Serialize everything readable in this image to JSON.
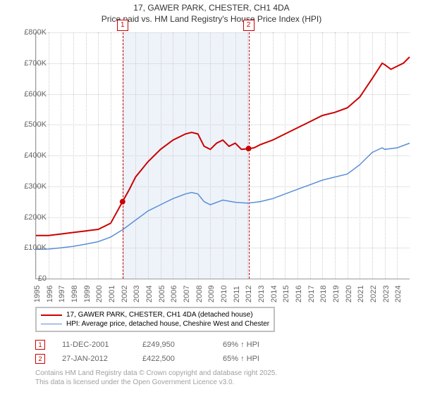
{
  "title": {
    "line1": "17, GAWER PARK, CHESTER, CH1 4DA",
    "line2": "Price paid vs. HM Land Registry's House Price Index (HPI)"
  },
  "chart": {
    "type": "line",
    "background_color": "#ffffff",
    "grid_color": "#cccccc",
    "axis_color": "#999999",
    "x_range": [
      1995,
      2025
    ],
    "y_range": [
      0,
      800000
    ],
    "y_ticks": [
      0,
      100000,
      200000,
      300000,
      400000,
      500000,
      600000,
      700000,
      800000
    ],
    "y_tick_labels": [
      "£0",
      "£100K",
      "£200K",
      "£300K",
      "£400K",
      "£500K",
      "£600K",
      "£700K",
      "£800K"
    ],
    "x_ticks": [
      1995,
      1996,
      1997,
      1998,
      1999,
      2000,
      2001,
      2002,
      2003,
      2004,
      2005,
      2006,
      2007,
      2008,
      2009,
      2010,
      2011,
      2012,
      2013,
      2014,
      2015,
      2016,
      2017,
      2018,
      2019,
      2020,
      2021,
      2022,
      2023,
      2024
    ],
    "shaded_band": {
      "x_start": 2001.95,
      "x_end": 2012.07,
      "color": "#eef3fa"
    },
    "markers": [
      {
        "label": "1",
        "x": 2001.95
      },
      {
        "label": "2",
        "x": 2012.07
      }
    ],
    "series": [
      {
        "name": "price_paid",
        "color": "#cc0000",
        "line_width": 2,
        "points": [
          [
            1995,
            140000
          ],
          [
            1996,
            140000
          ],
          [
            1997,
            145000
          ],
          [
            1998,
            150000
          ],
          [
            1999,
            155000
          ],
          [
            2000,
            160000
          ],
          [
            2001,
            180000
          ],
          [
            2001.95,
            249950
          ],
          [
            2002.5,
            290000
          ],
          [
            2003,
            330000
          ],
          [
            2004,
            380000
          ],
          [
            2005,
            420000
          ],
          [
            2006,
            450000
          ],
          [
            2007,
            470000
          ],
          [
            2007.5,
            475000
          ],
          [
            2008,
            470000
          ],
          [
            2008.5,
            430000
          ],
          [
            2009,
            420000
          ],
          [
            2009.5,
            440000
          ],
          [
            2010,
            450000
          ],
          [
            2010.5,
            430000
          ],
          [
            2011,
            440000
          ],
          [
            2011.5,
            420000
          ],
          [
            2012.07,
            422500
          ],
          [
            2012.5,
            425000
          ],
          [
            2013,
            435000
          ],
          [
            2014,
            450000
          ],
          [
            2015,
            470000
          ],
          [
            2016,
            490000
          ],
          [
            2017,
            510000
          ],
          [
            2018,
            530000
          ],
          [
            2019,
            540000
          ],
          [
            2020,
            555000
          ],
          [
            2021,
            590000
          ],
          [
            2022,
            650000
          ],
          [
            2022.8,
            700000
          ],
          [
            2023,
            695000
          ],
          [
            2023.5,
            680000
          ],
          [
            2024,
            690000
          ],
          [
            2024.5,
            700000
          ],
          [
            2025,
            720000
          ]
        ],
        "marker_dots": [
          {
            "x": 2001.95,
            "y": 249950
          },
          {
            "x": 2012.07,
            "y": 422500
          }
        ]
      },
      {
        "name": "hpi",
        "color": "#5b8fd6",
        "line_width": 1.5,
        "points": [
          [
            1995,
            95000
          ],
          [
            1996,
            96000
          ],
          [
            1997,
            100000
          ],
          [
            1998,
            105000
          ],
          [
            1999,
            112000
          ],
          [
            2000,
            120000
          ],
          [
            2001,
            135000
          ],
          [
            2002,
            160000
          ],
          [
            2003,
            190000
          ],
          [
            2004,
            220000
          ],
          [
            2005,
            240000
          ],
          [
            2006,
            260000
          ],
          [
            2007,
            275000
          ],
          [
            2007.5,
            280000
          ],
          [
            2008,
            275000
          ],
          [
            2008.5,
            250000
          ],
          [
            2009,
            240000
          ],
          [
            2010,
            255000
          ],
          [
            2011,
            248000
          ],
          [
            2012,
            245000
          ],
          [
            2013,
            250000
          ],
          [
            2014,
            260000
          ],
          [
            2015,
            275000
          ],
          [
            2016,
            290000
          ],
          [
            2017,
            305000
          ],
          [
            2018,
            320000
          ],
          [
            2019,
            330000
          ],
          [
            2020,
            340000
          ],
          [
            2021,
            370000
          ],
          [
            2022,
            410000
          ],
          [
            2022.8,
            425000
          ],
          [
            2023,
            420000
          ],
          [
            2024,
            425000
          ],
          [
            2025,
            440000
          ]
        ]
      }
    ]
  },
  "legend": {
    "items": [
      {
        "color": "#cc0000",
        "width": 2,
        "label": "17, GAWER PARK, CHESTER, CH1 4DA (detached house)"
      },
      {
        "color": "#5b8fd6",
        "width": 1.5,
        "label": "HPI: Average price, detached house, Cheshire West and Chester"
      }
    ]
  },
  "transactions": [
    {
      "marker": "1",
      "date": "11-DEC-2001",
      "price": "£249,950",
      "delta": "69% ↑ HPI"
    },
    {
      "marker": "2",
      "date": "27-JAN-2012",
      "price": "£422,500",
      "delta": "65% ↑ HPI"
    }
  ],
  "attribution": {
    "line1": "Contains HM Land Registry data © Crown copyright and database right 2025.",
    "line2": "This data is licensed under the Open Government Licence v3.0."
  }
}
